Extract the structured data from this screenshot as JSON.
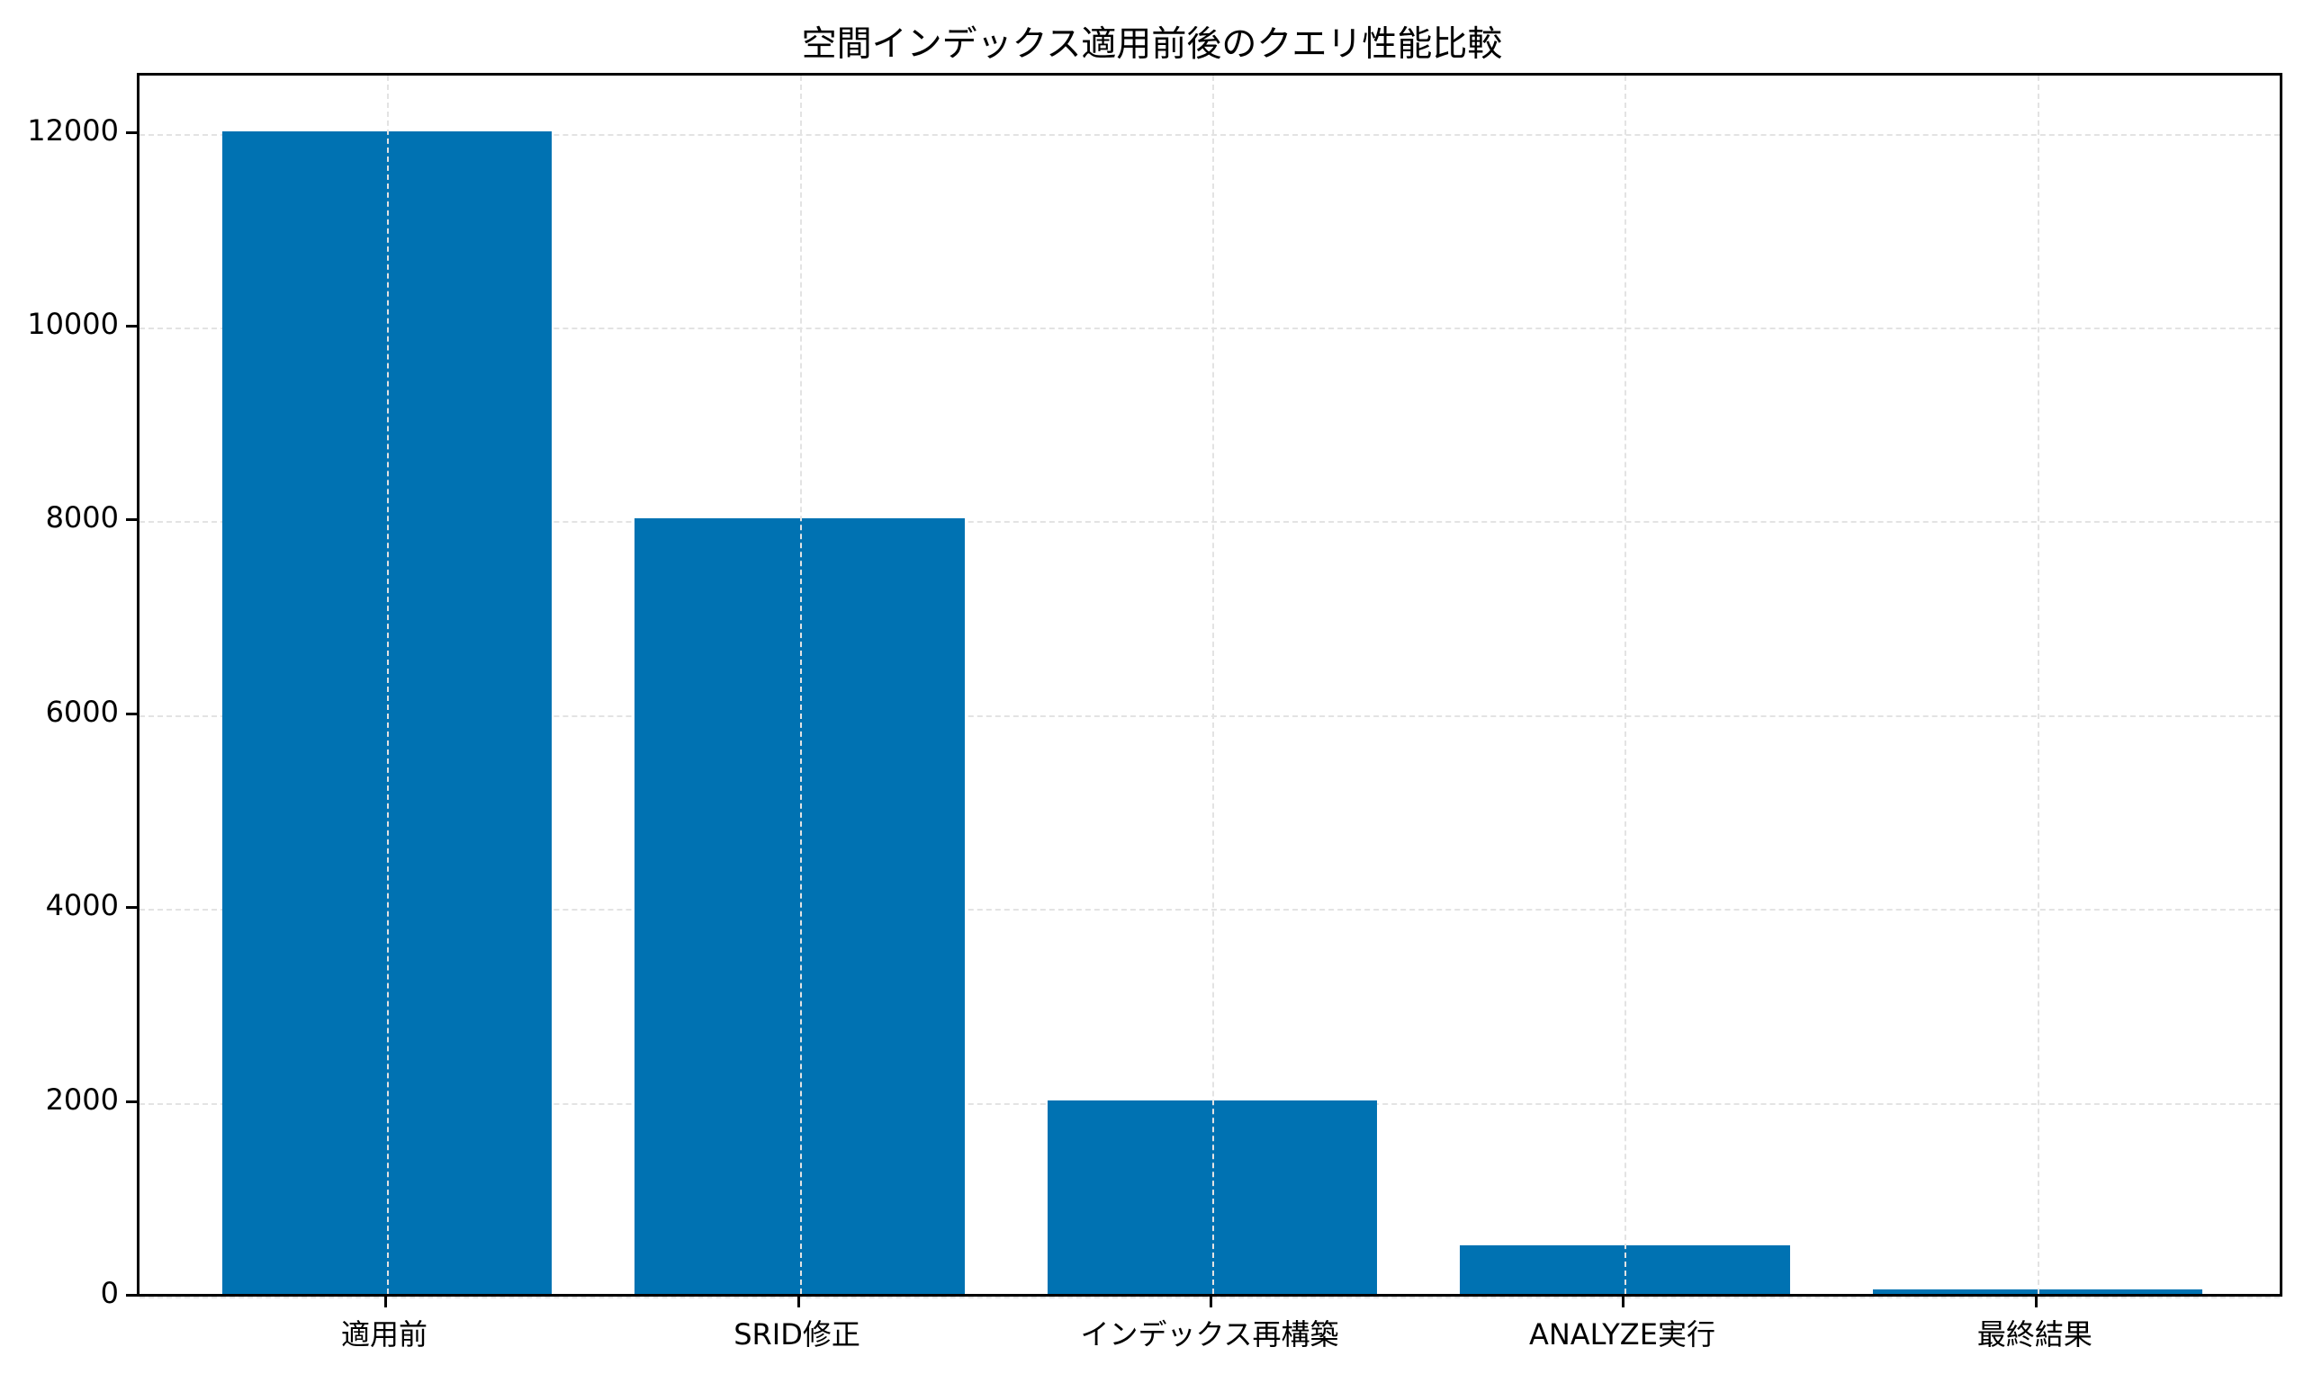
{
  "chart_data": {
    "type": "bar",
    "title": "空間インデックス適用前後のクエリ性能比較",
    "categories": [
      "適用前",
      "SRID修正",
      "インデックス再構築",
      "ANALYZE実行",
      "最終結果"
    ],
    "values": [
      12000,
      8000,
      2000,
      500,
      50
    ],
    "xlabel": "",
    "ylabel": "",
    "ylim": [
      0,
      12600
    ],
    "yticks": [
      "0",
      "2000",
      "4000",
      "6000",
      "8000",
      "10000",
      "12000"
    ],
    "grid": true,
    "bar_color": "#0072b2"
  }
}
